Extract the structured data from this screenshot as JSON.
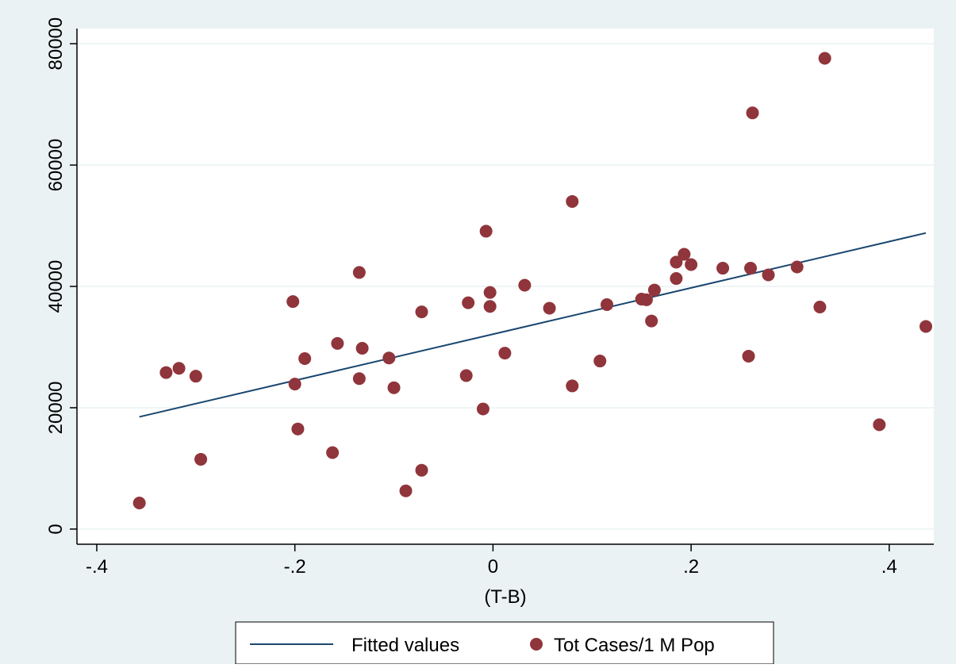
{
  "chart_data": {
    "type": "scatter",
    "title": "",
    "xlabel": "(T-B)",
    "ylabel": "",
    "xlim": [
      -0.42,
      0.445
    ],
    "ylim": [
      -2500,
      82500
    ],
    "x_ticks": [
      -0.4,
      -0.2,
      0,
      0.2,
      0.4
    ],
    "x_tick_labels": [
      "-.4",
      "-.2",
      "0",
      ".2",
      ".4"
    ],
    "y_ticks": [
      0,
      20000,
      40000,
      60000,
      80000
    ],
    "y_tick_labels": [
      "0",
      "20000",
      "40000",
      "60000",
      "80000"
    ],
    "grid": "horizontal",
    "legend_position": "bottom",
    "colors": {
      "background": "#eaf2f3",
      "plot_background": "#ffffff",
      "grid": "#eaf2f3",
      "fitted_line": "#1a476f",
      "marker": "#90353b"
    },
    "series": [
      {
        "name": "Fitted values",
        "kind": "line",
        "x": [
          -0.357,
          0.437
        ],
        "y": [
          18500,
          48800
        ]
      },
      {
        "name": "Tot Cases/1 M Pop",
        "kind": "scatter",
        "x": [
          -0.357,
          -0.33,
          -0.317,
          -0.3,
          -0.295,
          -0.202,
          -0.2,
          -0.197,
          -0.19,
          -0.162,
          -0.157,
          -0.135,
          -0.135,
          -0.132,
          -0.105,
          -0.1,
          -0.088,
          -0.072,
          -0.072,
          -0.027,
          -0.025,
          -0.01,
          -0.007,
          -0.003,
          -0.003,
          0.012,
          0.032,
          0.057,
          0.08,
          0.08,
          0.108,
          0.115,
          0.15,
          0.155,
          0.16,
          0.163,
          0.185,
          0.185,
          0.193,
          0.2,
          0.232,
          0.258,
          0.26,
          0.262,
          0.278,
          0.307,
          0.33,
          0.335,
          0.39,
          0.437
        ],
        "y": [
          4300,
          25800,
          26500,
          25200,
          11500,
          37500,
          23900,
          16500,
          28100,
          12600,
          30600,
          42300,
          24800,
          29800,
          28200,
          23300,
          6300,
          35800,
          9700,
          25300,
          37300,
          19800,
          49100,
          39000,
          36700,
          29000,
          40200,
          36400,
          54000,
          23600,
          27700,
          37000,
          37900,
          37800,
          34300,
          39400,
          44000,
          41300,
          45300,
          43600,
          43000,
          28500,
          43000,
          68600,
          41900,
          43200,
          36600,
          77600,
          17200,
          33400
        ]
      }
    ]
  }
}
